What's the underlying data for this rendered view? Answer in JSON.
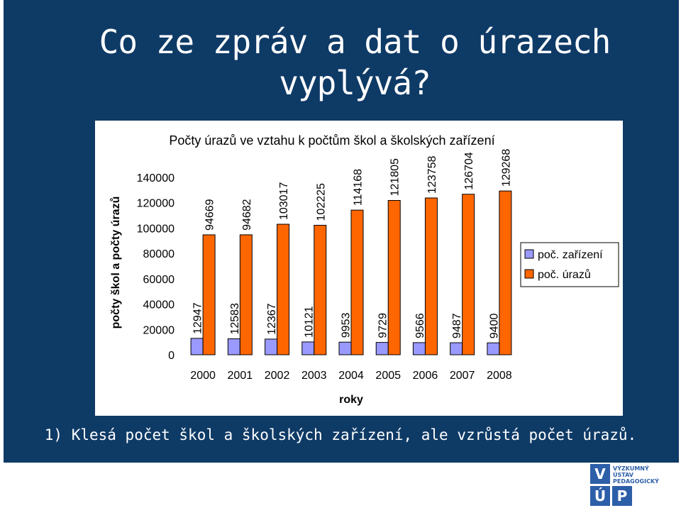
{
  "slide": {
    "title_line1": "Co ze zpráv a dat o úrazech",
    "title_line2": "vyplývá?",
    "footnote": "1) Klesá počet škol a školských zařízení, ale vzrůstá počet úrazů.",
    "colors": {
      "background": "#0e3a66",
      "text": "#ffffff"
    }
  },
  "logo": {
    "letters": [
      "V",
      "Ú",
      "P"
    ],
    "text_lines": [
      "VÝZKUMNÝ",
      "ÚSTAV",
      "PEDAGOGICKÝ"
    ]
  },
  "chart_data": {
    "type": "bar",
    "title": "Počty úrazů ve vztahu k počtům škol a školských zařízení",
    "xlabel": "roky",
    "ylabel": "počty škol a počty úrazů",
    "categories": [
      "2000",
      "2001",
      "2002",
      "2003",
      "2004",
      "2005",
      "2006",
      "2007",
      "2008"
    ],
    "series": [
      {
        "name": "poč. zařízení",
        "color": "#9999ff",
        "values": [
          12947,
          12583,
          12367,
          10121,
          9953,
          9729,
          9566,
          9487,
          9400
        ]
      },
      {
        "name": "poč. úrazů",
        "color": "#ff6600",
        "values": [
          94669,
          94682,
          103017,
          102225,
          114168,
          121805,
          123758,
          126704,
          129268
        ]
      }
    ],
    "ylim": [
      0,
      140000
    ],
    "yticks": [
      0,
      20000,
      40000,
      60000,
      80000,
      100000,
      120000,
      140000
    ],
    "grid": false,
    "legend": "right",
    "data_labels": true
  }
}
